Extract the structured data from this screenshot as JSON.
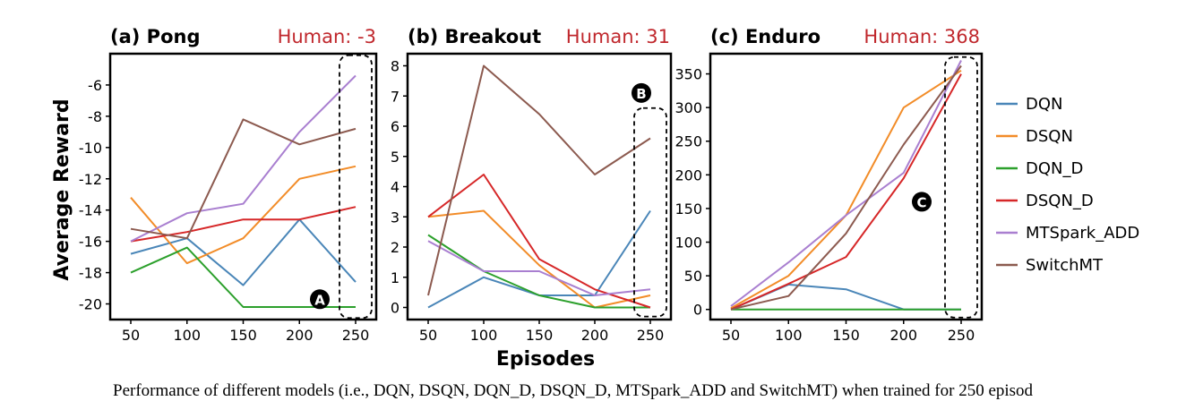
{
  "figure": {
    "ylabel": "Average Reward",
    "xlabel": "Episodes",
    "caption": "Performance of different models (i.e., DQN, DSQN, DQN_D, DSQN_D, MTSpark_ADD and SwitchMT) when trained for 250 episod"
  },
  "legend": [
    {
      "name": "DQN",
      "color": "#4a86b8"
    },
    {
      "name": "DSQN",
      "color": "#f28c28"
    },
    {
      "name": "DQN_D",
      "color": "#2ca02c"
    },
    {
      "name": "DSQN_D",
      "color": "#d62728"
    },
    {
      "name": "MTSpark_ADD",
      "color": "#a97fd0"
    },
    {
      "name": "SwitchMT",
      "color": "#8c5a4f"
    }
  ],
  "chart_data": [
    {
      "type": "line",
      "title": "(a) Pong",
      "human_label": "Human: -3",
      "marker_label": "A",
      "x": [
        50,
        100,
        150,
        200,
        250
      ],
      "yticks": [
        -20,
        -18,
        -16,
        -14,
        -12,
        -10,
        -8,
        -6
      ],
      "ytick_labels": [
        "-20",
        "-18",
        "-16",
        "-14",
        "-12",
        "-10",
        "-8",
        "-6"
      ],
      "xticks": [
        50,
        100,
        150,
        200,
        250
      ],
      "ylim": [
        -21,
        -4
      ],
      "series": [
        {
          "name": "DQN",
          "values": [
            -16.8,
            -15.8,
            -18.8,
            -14.6,
            -18.6
          ]
        },
        {
          "name": "DSQN",
          "values": [
            -13.2,
            -17.4,
            -15.8,
            -12.0,
            -11.2
          ]
        },
        {
          "name": "DQN_D",
          "values": [
            -18.0,
            -16.4,
            -20.2,
            -20.2,
            -20.2
          ]
        },
        {
          "name": "DSQN_D",
          "values": [
            -16.0,
            -15.4,
            -14.6,
            -14.6,
            -13.8
          ]
        },
        {
          "name": "MTSpark_ADD",
          "values": [
            -16.0,
            -14.2,
            -13.6,
            -9.0,
            -5.4
          ]
        },
        {
          "name": "SwitchMT",
          "values": [
            -15.2,
            -15.8,
            -8.2,
            -9.8,
            -8.8
          ]
        }
      ]
    },
    {
      "type": "line",
      "title": "(b) Breakout",
      "human_label": "Human: 31",
      "marker_label": "B",
      "x": [
        50,
        100,
        150,
        200,
        250
      ],
      "yticks": [
        0,
        1,
        2,
        3,
        4,
        5,
        6,
        7,
        8
      ],
      "ytick_labels": [
        "0",
        "1",
        "2",
        "3",
        "4",
        "5",
        "6",
        "7",
        "8"
      ],
      "xticks": [
        50,
        100,
        150,
        200,
        250
      ],
      "ylim": [
        -0.4,
        8.4
      ],
      "series": [
        {
          "name": "DQN",
          "values": [
            0.0,
            1.0,
            0.4,
            0.4,
            3.2
          ]
        },
        {
          "name": "DSQN",
          "values": [
            3.0,
            3.2,
            1.4,
            0.0,
            0.4
          ]
        },
        {
          "name": "DQN_D",
          "values": [
            2.4,
            1.2,
            0.4,
            0.0,
            0.0
          ]
        },
        {
          "name": "DSQN_D",
          "values": [
            3.0,
            4.4,
            1.6,
            0.6,
            0.0
          ]
        },
        {
          "name": "MTSpark_ADD",
          "values": [
            2.2,
            1.2,
            1.2,
            0.4,
            0.6
          ]
        },
        {
          "name": "SwitchMT",
          "values": [
            0.4,
            8.0,
            6.4,
            4.4,
            5.6
          ]
        }
      ]
    },
    {
      "type": "line",
      "title": "(c) Enduro",
      "human_label": "Human: 368",
      "marker_label": "C",
      "x": [
        50,
        100,
        150,
        200,
        250
      ],
      "yticks": [
        0,
        50,
        100,
        150,
        200,
        250,
        300,
        350
      ],
      "ytick_labels": [
        "0",
        "50",
        "100",
        "150",
        "200",
        "250",
        "300",
        "350"
      ],
      "xticks": [
        50,
        100,
        150,
        200,
        250
      ],
      "ylim": [
        -15,
        380
      ],
      "series": [
        {
          "name": "DQN",
          "values": [
            0,
            37,
            30,
            0,
            0
          ]
        },
        {
          "name": "DSQN",
          "values": [
            2,
            50,
            140,
            300,
            355
          ]
        },
        {
          "name": "DQN_D",
          "values": [
            0,
            0,
            0,
            0,
            0
          ]
        },
        {
          "name": "DSQN_D",
          "values": [
            0,
            38,
            78,
            195,
            350
          ]
        },
        {
          "name": "MTSpark_ADD",
          "values": [
            5,
            70,
            140,
            203,
            370
          ]
        },
        {
          "name": "SwitchMT",
          "values": [
            0,
            20,
            113,
            245,
            362
          ]
        }
      ]
    }
  ]
}
